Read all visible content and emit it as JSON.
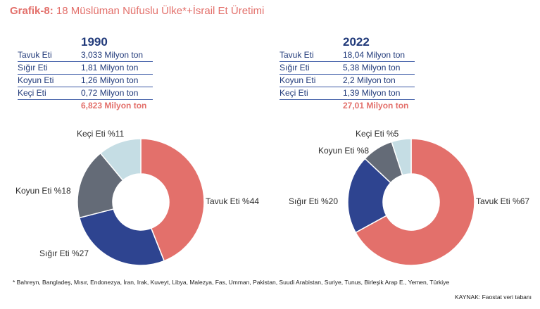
{
  "title": {
    "prefix": "Grafik-8:",
    "text": " 18 Müslüman Nüfuslu Ülke*+İsrail Et Üretimi"
  },
  "colors": {
    "tavuk": "#e3706b",
    "sigir": "#2e4490",
    "koyun": "#646b77",
    "keci": "#c5dde4",
    "navy": "#213a7a",
    "accent": "#e3706b"
  },
  "panels": [
    {
      "year": "1990",
      "rows": [
        {
          "label": "Tavuk Eti",
          "value": "3,033 Milyon ton"
        },
        {
          "label": "Sığır Eti",
          "value": "1,81 Milyon ton"
        },
        {
          "label": "Koyun Eti",
          "value": "1,26 Milyon ton"
        },
        {
          "label": "Keçi Eti",
          "value": "0,72 Milyon ton"
        }
      ],
      "total": "6,823 Milyon ton"
    },
    {
      "year": "2022",
      "rows": [
        {
          "label": "Tavuk Eti",
          "value": "18,04 Milyon ton"
        },
        {
          "label": "Sığır Eti",
          "value": "5,38 Milyon ton"
        },
        {
          "label": "Koyun Eti",
          "value": "2,2 Milyon ton"
        },
        {
          "label": "Keçi Eti",
          "value": "1,39 Milyon ton"
        }
      ],
      "total": "27,01 Milyon ton"
    }
  ],
  "chart_data": [
    {
      "type": "pie",
      "categories": [
        "Tavuk Eti",
        "Sığır Eti",
        "Koyun Eti",
        "Keçi Eti"
      ],
      "values": [
        44,
        27,
        18,
        11
      ],
      "labels": [
        "Tavuk Eti %44",
        "Sığır Eti %27",
        "Koyun Eti %18",
        "Keçi Eti %11"
      ]
    },
    {
      "type": "pie",
      "categories": [
        "Tavuk Eti",
        "Sığır Eti",
        "Koyun Eti",
        "Keçi Eti"
      ],
      "values": [
        67,
        20,
        8,
        5
      ],
      "labels": [
        "Tavuk Eti %67",
        "Sığır Eti %20",
        "Koyun Eti %8",
        "Keçi Eti %5"
      ]
    }
  ],
  "footnote": "* Bahreyn, Bangladeş, Mısır, Endonezya, İran, Irak, Kuveyt, Libya, Malezya, Fas, Umman, Pakistan, Suudi Arabistan, Suriye, Tunus, Birleşik Arap E., Yemen, Türkiye",
  "source": "KAYNAK: Faostat veri tabanı"
}
